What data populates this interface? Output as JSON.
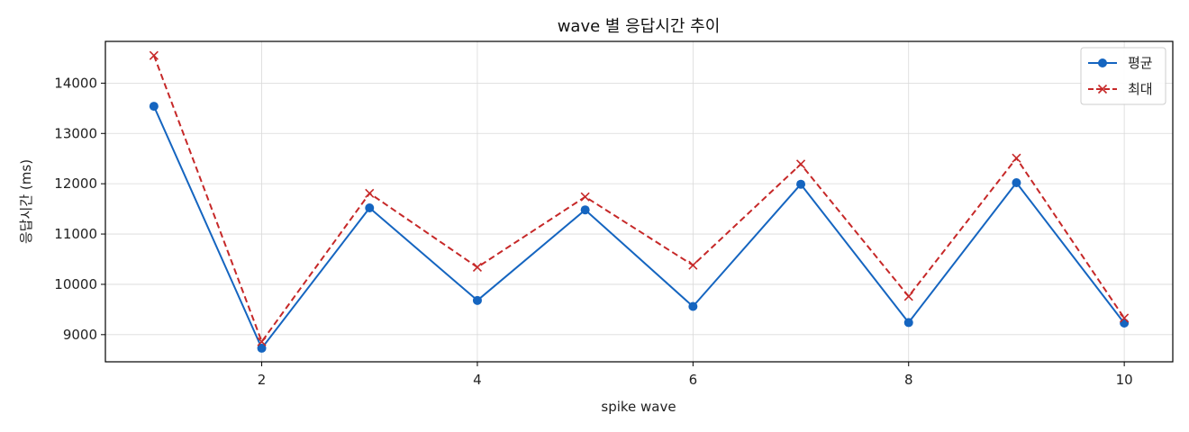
{
  "chart_data": {
    "type": "line",
    "title": "wave 별 응답시간 추이",
    "xlabel": "spike wave",
    "ylabel": "응답시간 (ms)",
    "x": [
      1,
      2,
      3,
      4,
      5,
      6,
      7,
      8,
      9,
      10
    ],
    "xticks": [
      2,
      4,
      6,
      8,
      10
    ],
    "yticks": [
      9000,
      10000,
      11000,
      12000,
      13000,
      14000
    ],
    "xlim": [
      0.55,
      10.45
    ],
    "ylim": [
      8460,
      14830
    ],
    "grid": true,
    "legend_position": "top-right",
    "series": [
      {
        "name": "평균",
        "color": "#1565c0",
        "line_style": "solid",
        "marker": "circle",
        "values": [
          13540,
          8730,
          11520,
          9680,
          11480,
          9560,
          11990,
          9240,
          12020,
          9230
        ]
      },
      {
        "name": "최대",
        "color": "#c62828",
        "line_style": "dashed",
        "marker": "x",
        "values": [
          14550,
          8860,
          11810,
          10340,
          11740,
          10380,
          12390,
          9760,
          12510,
          9330
        ]
      }
    ]
  }
}
